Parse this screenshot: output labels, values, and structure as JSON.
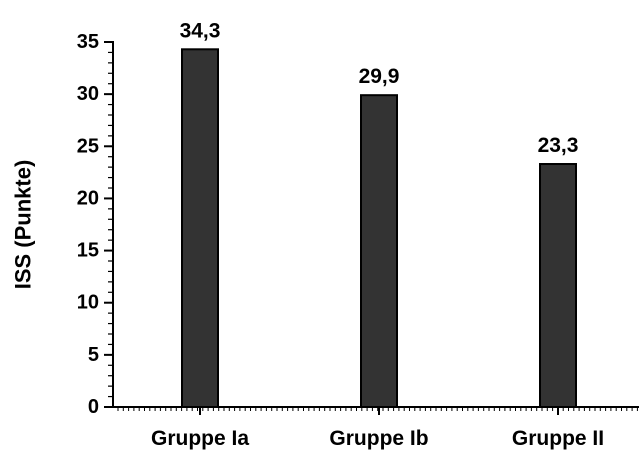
{
  "chart_data": {
    "type": "bar",
    "title": "",
    "xlabel": "",
    "ylabel": "ISS (Punkte)",
    "ylim": [
      0,
      35
    ],
    "yticks": [
      "0",
      "5",
      "10",
      "15",
      "20",
      "25",
      "30",
      "35"
    ],
    "categories": [
      "Gruppe Ia",
      "Gruppe Ib",
      "Gruppe II"
    ],
    "values": [
      34.3,
      29.9,
      23.3
    ],
    "value_labels": [
      "34,3",
      "29,9",
      "23,3"
    ],
    "grid": false,
    "legend": "none",
    "bar_color": "#333333"
  }
}
